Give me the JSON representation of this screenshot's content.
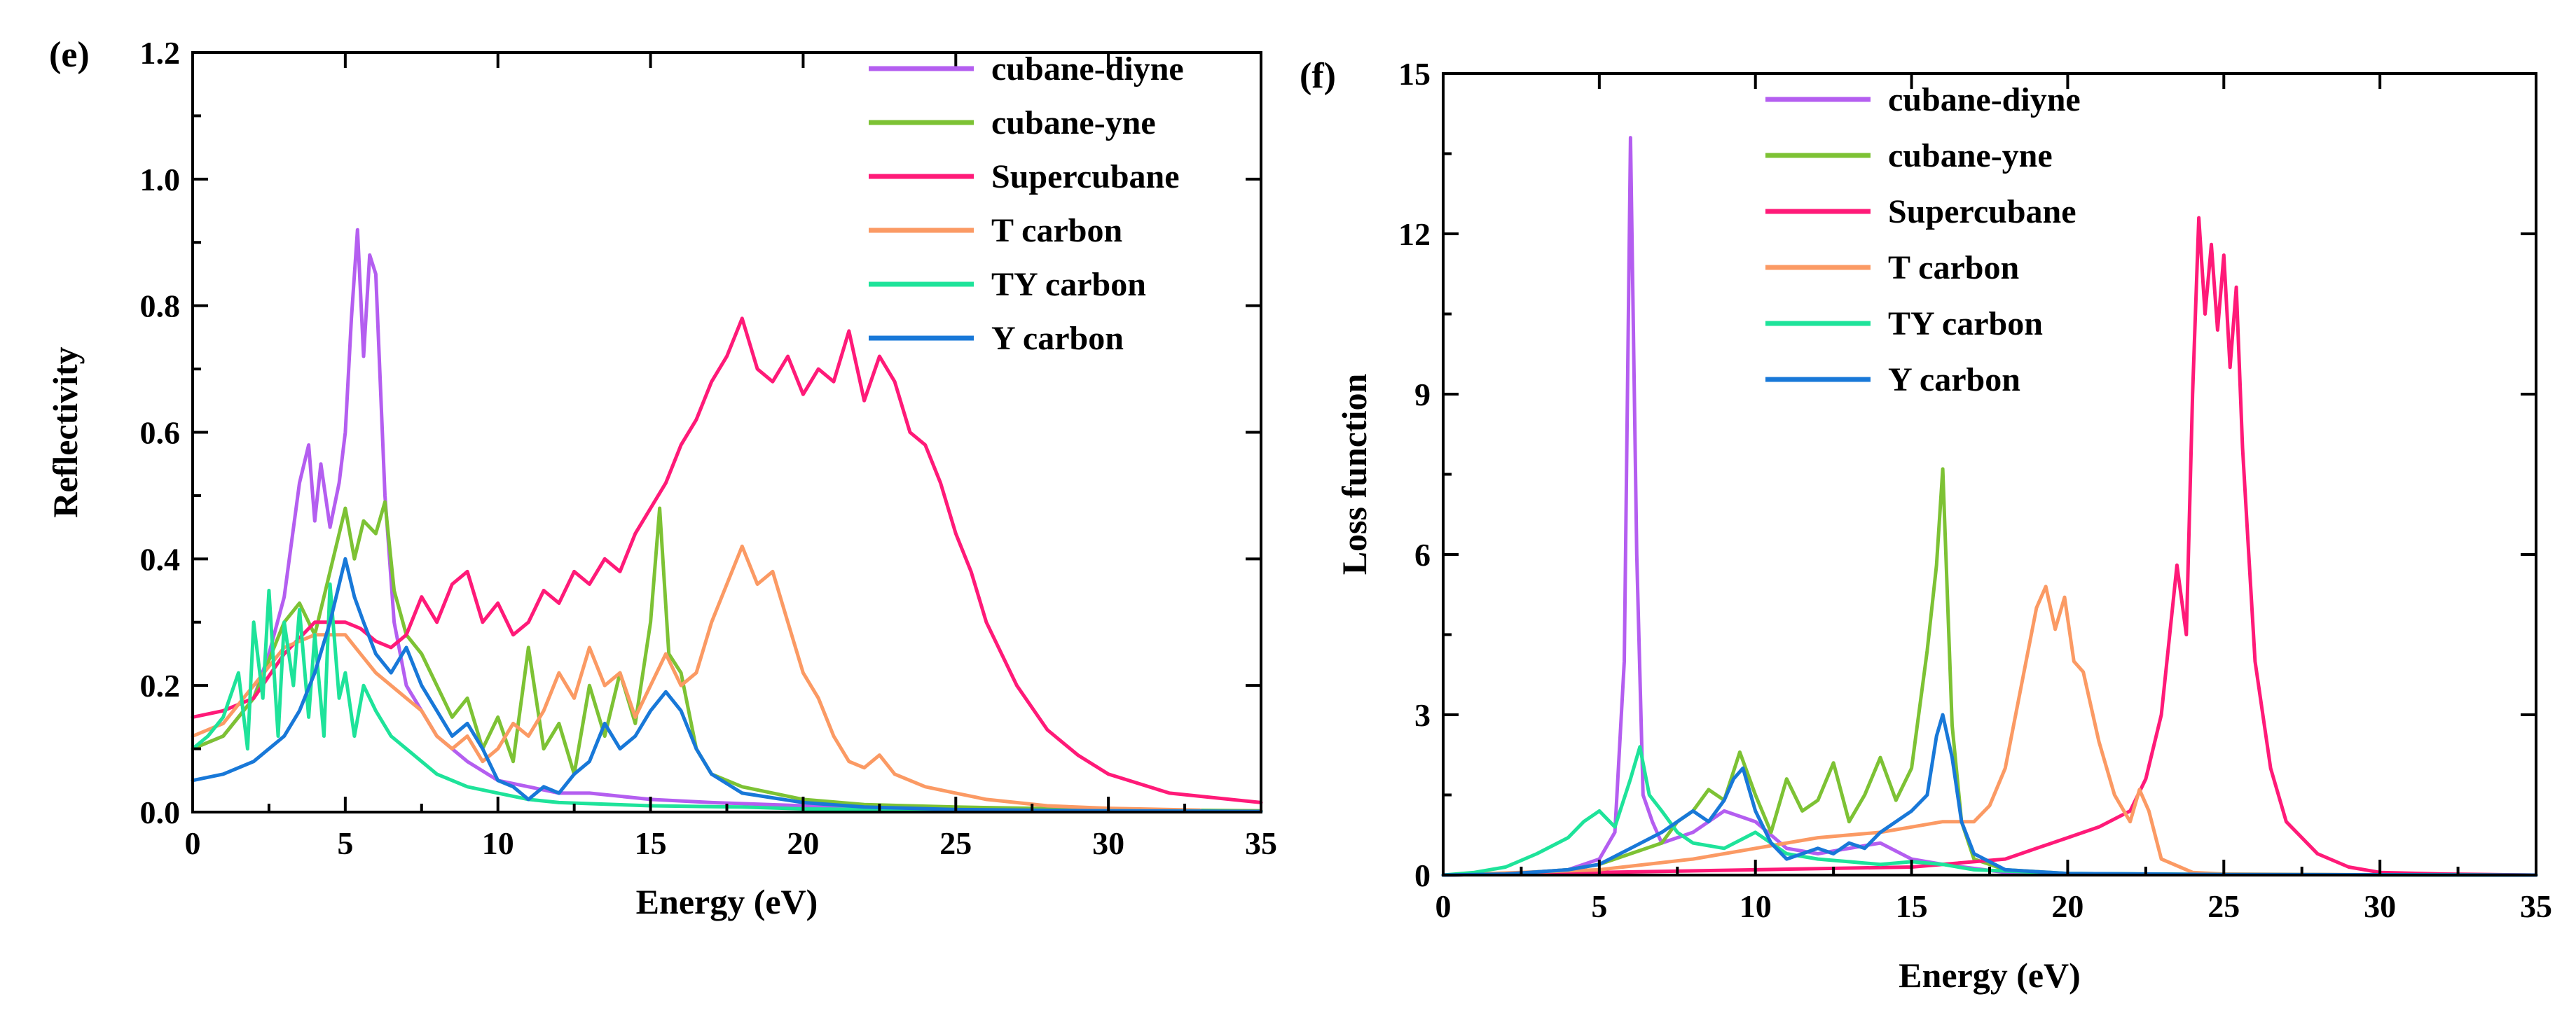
{
  "series_styles": [
    {
      "name": "cubane-diyne",
      "color": "#b45ef0"
    },
    {
      "name": "cubane-yne",
      "color": "#7dc234"
    },
    {
      "name": "Supercubane",
      "color": "#ff1a78"
    },
    {
      "name": "T carbon",
      "color": "#fb9a64"
    },
    {
      "name": "TY carbon",
      "color": "#1ee39a"
    },
    {
      "name": "Y carbon",
      "color": "#1878d8"
    }
  ],
  "chart_data": [
    {
      "panel_label": "(e)",
      "type": "line",
      "title": "",
      "xlabel": "Energy (eV)",
      "ylabel": "Reflectivity",
      "xlim": [
        0,
        35
      ],
      "ylim": [
        0,
        1.2
      ],
      "xticks": [
        "0",
        "5",
        "10",
        "15",
        "20",
        "25",
        "30",
        "35"
      ],
      "yticks": [
        "0.0",
        "0.2",
        "0.4",
        "0.6",
        "0.8",
        "1.0",
        "1.2"
      ],
      "legend": "top-right",
      "grid": false,
      "series": [
        {
          "name": "cubane-diyne",
          "x": [
            0,
            1,
            2,
            2.5,
            3,
            3.5,
            3.8,
            4,
            4.2,
            4.5,
            4.8,
            5,
            5.2,
            5.4,
            5.6,
            5.8,
            6,
            6.3,
            6.6,
            7,
            8,
            9,
            10,
            11,
            12,
            13,
            15,
            17,
            20,
            25,
            30,
            35
          ],
          "y": [
            0.1,
            0.12,
            0.18,
            0.25,
            0.34,
            0.52,
            0.58,
            0.46,
            0.55,
            0.45,
            0.52,
            0.6,
            0.78,
            0.92,
            0.72,
            0.88,
            0.85,
            0.5,
            0.3,
            0.2,
            0.12,
            0.08,
            0.05,
            0.04,
            0.03,
            0.03,
            0.02,
            0.015,
            0.01,
            0.005,
            0.003,
            0.002
          ]
        },
        {
          "name": "cubane-yne",
          "x": [
            0,
            1,
            2,
            3,
            3.5,
            4,
            4.5,
            5,
            5.3,
            5.6,
            6,
            6.3,
            6.6,
            7,
            7.5,
            8,
            8.5,
            9,
            9.5,
            10,
            10.5,
            11,
            11.5,
            12,
            12.5,
            13,
            13.5,
            14,
            14.5,
            15,
            15.3,
            15.6,
            16,
            16.5,
            17,
            18,
            20,
            22,
            25,
            30,
            35
          ],
          "y": [
            0.1,
            0.12,
            0.18,
            0.3,
            0.33,
            0.28,
            0.38,
            0.48,
            0.4,
            0.46,
            0.44,
            0.49,
            0.35,
            0.28,
            0.25,
            0.2,
            0.15,
            0.18,
            0.1,
            0.15,
            0.08,
            0.26,
            0.1,
            0.14,
            0.06,
            0.2,
            0.12,
            0.22,
            0.14,
            0.3,
            0.48,
            0.25,
            0.22,
            0.1,
            0.06,
            0.04,
            0.02,
            0.012,
            0.008,
            0.004,
            0.002
          ]
        },
        {
          "name": "Supercubane",
          "x": [
            0,
            1,
            2,
            3,
            4,
            5,
            5.5,
            6,
            6.5,
            7,
            7.5,
            8,
            8.5,
            9,
            9.5,
            10,
            10.5,
            11,
            11.5,
            12,
            12.5,
            13,
            13.5,
            14,
            14.5,
            15,
            15.5,
            16,
            16.5,
            17,
            17.5,
            18,
            18.5,
            19,
            19.5,
            20,
            20.5,
            21,
            21.5,
            22,
            22.5,
            23,
            23.5,
            24,
            24.5,
            25,
            25.5,
            26,
            27,
            28,
            29,
            30,
            32,
            35
          ],
          "y": [
            0.15,
            0.16,
            0.18,
            0.25,
            0.3,
            0.3,
            0.29,
            0.27,
            0.26,
            0.28,
            0.34,
            0.3,
            0.36,
            0.38,
            0.3,
            0.33,
            0.28,
            0.3,
            0.35,
            0.33,
            0.38,
            0.36,
            0.4,
            0.38,
            0.44,
            0.48,
            0.52,
            0.58,
            0.62,
            0.68,
            0.72,
            0.78,
            0.7,
            0.68,
            0.72,
            0.66,
            0.7,
            0.68,
            0.76,
            0.65,
            0.72,
            0.68,
            0.6,
            0.58,
            0.52,
            0.44,
            0.38,
            0.3,
            0.2,
            0.13,
            0.09,
            0.06,
            0.03,
            0.015
          ]
        },
        {
          "name": "T carbon",
          "x": [
            0,
            1,
            2,
            3,
            4,
            5,
            5.5,
            6,
            6.5,
            7,
            7.5,
            8,
            8.5,
            9,
            9.5,
            10,
            10.5,
            11,
            11.5,
            12,
            12.5,
            13,
            13.5,
            14,
            14.5,
            15,
            15.5,
            16,
            16.5,
            17,
            17.5,
            18,
            18.5,
            19,
            19.5,
            20,
            20.5,
            21,
            21.5,
            22,
            22.5,
            23,
            24,
            25,
            26,
            28,
            30,
            33
          ],
          "y": [
            0.12,
            0.14,
            0.2,
            0.26,
            0.28,
            0.28,
            0.25,
            0.22,
            0.2,
            0.18,
            0.16,
            0.12,
            0.1,
            0.12,
            0.08,
            0.1,
            0.14,
            0.12,
            0.16,
            0.22,
            0.18,
            0.26,
            0.2,
            0.22,
            0.15,
            0.2,
            0.25,
            0.2,
            0.22,
            0.3,
            0.36,
            0.42,
            0.36,
            0.38,
            0.3,
            0.22,
            0.18,
            0.12,
            0.08,
            0.07,
            0.09,
            0.06,
            0.04,
            0.03,
            0.02,
            0.01,
            0.006,
            0.003
          ]
        },
        {
          "name": "TY carbon",
          "x": [
            0,
            0.5,
            1,
            1.5,
            1.8,
            2,
            2.3,
            2.5,
            2.8,
            3,
            3.3,
            3.5,
            3.8,
            4,
            4.3,
            4.5,
            4.8,
            5,
            5.3,
            5.6,
            6,
            6.5,
            7,
            7.5,
            8,
            8.5,
            9,
            10,
            11,
            12,
            15,
            18,
            20,
            25,
            30,
            35
          ],
          "y": [
            0.1,
            0.12,
            0.15,
            0.22,
            0.1,
            0.3,
            0.18,
            0.35,
            0.12,
            0.3,
            0.2,
            0.32,
            0.15,
            0.28,
            0.12,
            0.36,
            0.18,
            0.22,
            0.12,
            0.2,
            0.16,
            0.12,
            0.1,
            0.08,
            0.06,
            0.05,
            0.04,
            0.03,
            0.02,
            0.015,
            0.01,
            0.008,
            0.005,
            0.003,
            0.002,
            0.001
          ]
        },
        {
          "name": "Y carbon",
          "x": [
            0,
            1,
            2,
            3,
            3.5,
            4,
            4.5,
            5,
            5.3,
            5.6,
            6,
            6.5,
            7,
            7.5,
            8,
            8.5,
            9,
            9.5,
            10,
            10.5,
            11,
            11.5,
            12,
            12.5,
            13,
            13.5,
            14,
            14.5,
            15,
            15.5,
            16,
            16.5,
            17,
            18,
            20,
            22,
            25,
            30,
            35
          ],
          "y": [
            0.05,
            0.06,
            0.08,
            0.12,
            0.16,
            0.22,
            0.3,
            0.4,
            0.34,
            0.3,
            0.25,
            0.22,
            0.26,
            0.2,
            0.16,
            0.12,
            0.14,
            0.1,
            0.05,
            0.04,
            0.02,
            0.04,
            0.03,
            0.06,
            0.08,
            0.14,
            0.1,
            0.12,
            0.16,
            0.19,
            0.16,
            0.1,
            0.06,
            0.03,
            0.015,
            0.008,
            0.004,
            0.002,
            0.001
          ]
        }
      ]
    },
    {
      "panel_label": "(f)",
      "type": "line",
      "title": "",
      "xlabel": "Energy (eV)",
      "ylabel": "Loss function",
      "xlim": [
        0,
        35
      ],
      "ylim": [
        0,
        15
      ],
      "xticks": [
        "0",
        "5",
        "10",
        "15",
        "20",
        "25",
        "30",
        "35"
      ],
      "yticks": [
        "0",
        "3",
        "6",
        "9",
        "12",
        "15"
      ],
      "legend": "top-center",
      "grid": false,
      "series": [
        {
          "name": "cubane-diyne",
          "x": [
            0,
            2,
            4,
            5,
            5.5,
            5.8,
            6,
            6.2,
            6.4,
            6.7,
            7,
            8,
            9,
            10,
            11,
            12,
            13,
            14,
            15,
            16,
            18,
            20,
            25,
            30,
            35
          ],
          "y": [
            0,
            0.02,
            0.1,
            0.3,
            0.8,
            4,
            13.8,
            6,
            1.5,
            1.0,
            0.6,
            0.8,
            1.2,
            1.0,
            0.5,
            0.4,
            0.5,
            0.6,
            0.3,
            0.2,
            0.05,
            0.02,
            0.01,
            0.005,
            0
          ]
        },
        {
          "name": "cubane-yne",
          "x": [
            0,
            2,
            4,
            5,
            6,
            7,
            7.5,
            8,
            8.5,
            9,
            9.5,
            10,
            10.5,
            11,
            11.5,
            12,
            12.5,
            13,
            13.5,
            14,
            14.5,
            15,
            15.5,
            15.8,
            16,
            16.3,
            16.6,
            17,
            18,
            20,
            25,
            30,
            35
          ],
          "y": [
            0,
            0.02,
            0.1,
            0.2,
            0.4,
            0.6,
            1.0,
            1.2,
            1.6,
            1.4,
            2.3,
            1.5,
            0.8,
            1.8,
            1.2,
            1.4,
            2.1,
            1.0,
            1.5,
            2.2,
            1.4,
            2.0,
            4.2,
            5.8,
            7.6,
            2.8,
            1.0,
            0.3,
            0.1,
            0.03,
            0.01,
            0.005,
            0
          ]
        },
        {
          "name": "Supercubane",
          "x": [
            0,
            5,
            10,
            15,
            18,
            19,
            20,
            21,
            22,
            22.5,
            23,
            23.5,
            23.8,
            24,
            24.2,
            24.4,
            24.6,
            24.8,
            25,
            25.2,
            25.4,
            25.6,
            25.8,
            26,
            26.5,
            27,
            28,
            29,
            30,
            32,
            35
          ],
          "y": [
            0,
            0.05,
            0.1,
            0.15,
            0.3,
            0.5,
            0.7,
            0.9,
            1.2,
            1.8,
            3.0,
            5.8,
            4.5,
            9.0,
            12.3,
            10.5,
            11.8,
            10.2,
            11.6,
            9.5,
            11.0,
            8.0,
            6.0,
            4.0,
            2.0,
            1.0,
            0.4,
            0.15,
            0.05,
            0.02,
            0
          ]
        },
        {
          "name": "T carbon",
          "x": [
            0,
            5,
            8,
            10,
            12,
            14,
            15,
            16,
            17,
            17.5,
            18,
            18.5,
            19,
            19.3,
            19.6,
            19.9,
            20.2,
            20.5,
            21,
            21.5,
            22,
            22.3,
            22.6,
            23,
            24,
            25,
            30,
            35
          ],
          "y": [
            0,
            0.1,
            0.3,
            0.5,
            0.7,
            0.8,
            0.9,
            1.0,
            1.0,
            1.3,
            2.0,
            3.5,
            5.0,
            5.4,
            4.6,
            5.2,
            4.0,
            3.8,
            2.5,
            1.5,
            1.0,
            1.6,
            1.2,
            0.3,
            0.05,
            0.02,
            0.005,
            0
          ]
        },
        {
          "name": "TY carbon",
          "x": [
            0,
            1,
            2,
            3,
            4,
            4.5,
            5,
            5.5,
            6,
            6.3,
            6.6,
            7,
            7.5,
            8,
            9,
            10,
            11,
            12,
            13,
            14,
            15,
            16,
            17,
            20,
            25,
            30,
            35
          ],
          "y": [
            0,
            0.05,
            0.15,
            0.4,
            0.7,
            1.0,
            1.2,
            0.9,
            1.8,
            2.4,
            1.5,
            1.2,
            0.8,
            0.6,
            0.5,
            0.8,
            0.4,
            0.3,
            0.25,
            0.2,
            0.25,
            0.2,
            0.1,
            0.03,
            0.01,
            0.005,
            0
          ]
        },
        {
          "name": "Y carbon",
          "x": [
            0,
            2,
            4,
            5,
            6,
            7,
            7.5,
            8,
            8.5,
            9,
            9.3,
            9.6,
            10,
            10.5,
            11,
            12,
            12.5,
            13,
            13.5,
            14,
            14.5,
            15,
            15.5,
            15.8,
            16,
            16.3,
            16.6,
            17,
            18,
            20,
            25,
            30,
            35
          ],
          "y": [
            0,
            0.02,
            0.1,
            0.2,
            0.5,
            0.8,
            1.0,
            1.2,
            1.0,
            1.4,
            1.8,
            2.0,
            1.2,
            0.6,
            0.3,
            0.5,
            0.4,
            0.6,
            0.5,
            0.8,
            1.0,
            1.2,
            1.5,
            2.6,
            3.0,
            2.2,
            1.0,
            0.4,
            0.1,
            0.03,
            0.01,
            0.005,
            0
          ]
        }
      ]
    }
  ]
}
